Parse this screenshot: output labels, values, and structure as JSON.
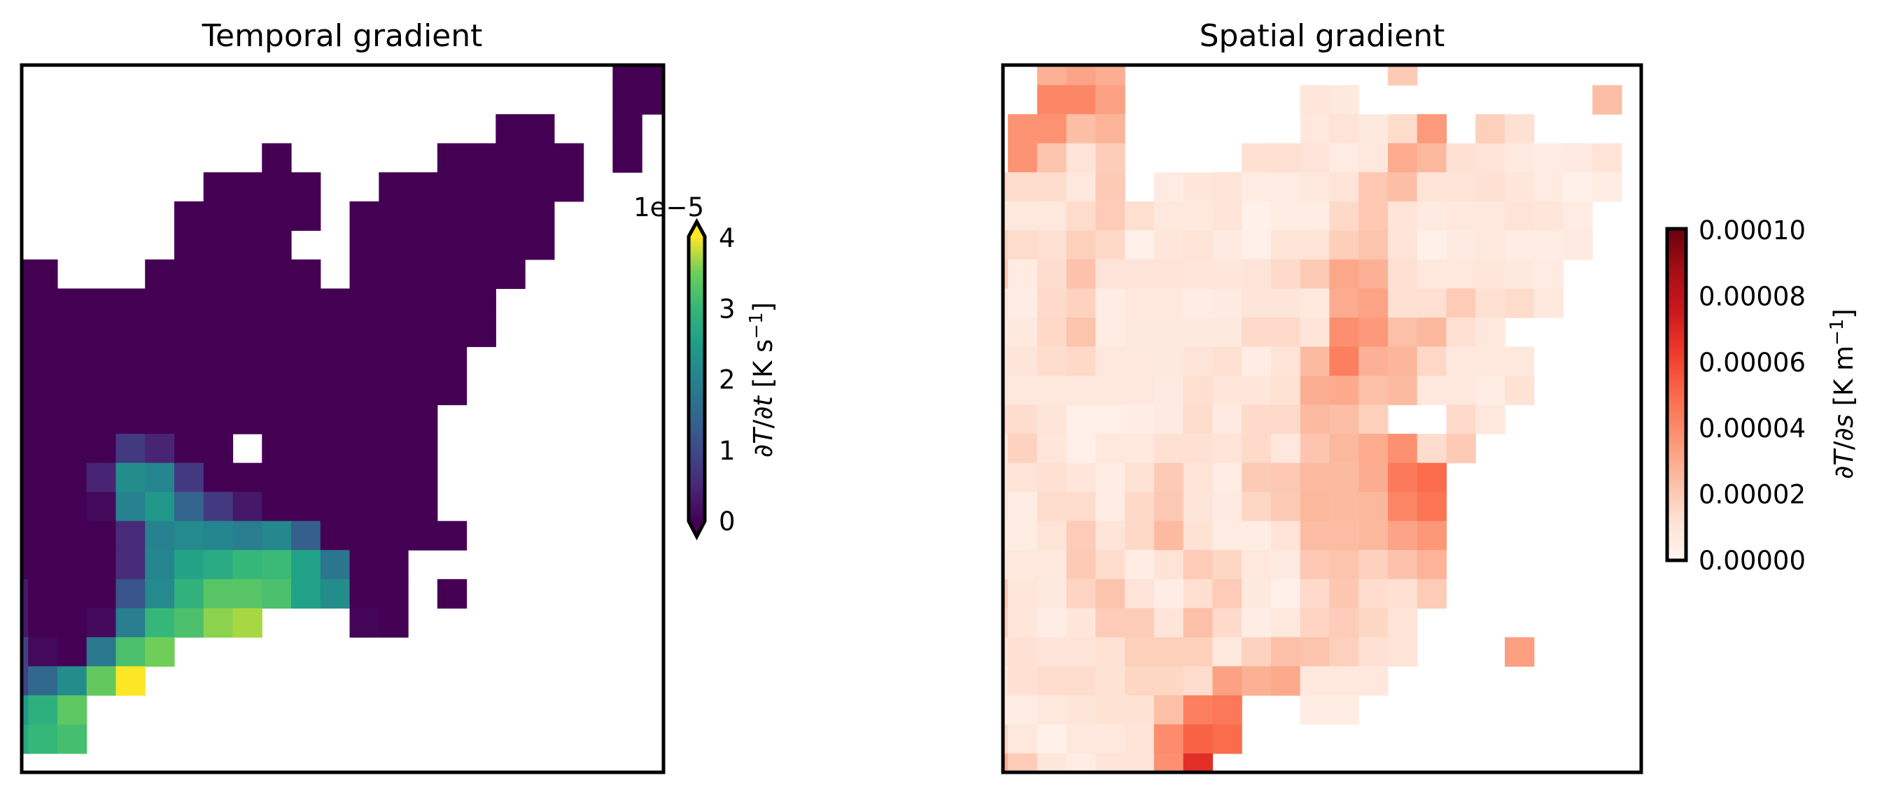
{
  "chart_data": [
    {
      "type": "heatmap",
      "title": "Temporal gradient",
      "colormap": "viridis",
      "value_scale": 1e-05,
      "vmin": 0,
      "vmax": 4,
      "colorbar": {
        "extend": "both",
        "offset_text": "1e−5",
        "ticks": [
          0,
          1,
          2,
          3,
          4
        ],
        "tick_labels": [
          "0",
          "1",
          "2",
          "3",
          "4"
        ],
        "label_parts": [
          "∂",
          "T",
          "/∂",
          "t",
          " [K s",
          "−1",
          "]"
        ]
      },
      "grid_rows": 25,
      "grid_cols": 23,
      "values": [
        [
          null,
          null,
          null,
          null,
          null,
          null,
          null,
          null,
          null,
          null,
          null,
          null,
          null,
          null,
          null,
          null,
          null,
          null,
          null,
          null,
          null,
          0,
          0
        ],
        [
          null,
          null,
          null,
          null,
          null,
          null,
          null,
          null,
          null,
          null,
          null,
          null,
          null,
          null,
          null,
          null,
          null,
          null,
          null,
          null,
          null,
          0,
          0
        ],
        [
          null,
          null,
          null,
          null,
          null,
          null,
          null,
          null,
          null,
          null,
          null,
          null,
          null,
          null,
          null,
          null,
          null,
          0,
          0,
          null,
          null,
          0,
          null
        ],
        [
          null,
          null,
          null,
          null,
          null,
          null,
          null,
          null,
          null,
          0,
          null,
          null,
          null,
          null,
          null,
          0,
          0,
          0,
          0,
          0,
          null,
          0,
          null
        ],
        [
          null,
          null,
          null,
          null,
          null,
          null,
          null,
          0,
          0,
          0,
          0,
          null,
          null,
          0,
          0,
          0,
          0,
          0,
          0,
          0,
          null,
          null,
          null
        ],
        [
          null,
          null,
          null,
          null,
          null,
          null,
          0,
          0,
          0,
          0,
          0,
          null,
          0,
          0,
          0,
          0,
          0,
          0,
          0,
          null,
          null,
          null,
          null
        ],
        [
          null,
          null,
          null,
          null,
          null,
          null,
          0,
          0,
          0,
          0,
          null,
          null,
          0,
          0,
          0,
          0,
          0,
          0,
          0,
          null,
          null,
          null,
          null
        ],
        [
          0,
          0,
          null,
          null,
          null,
          0,
          0,
          0,
          0,
          0,
          0,
          null,
          0,
          0,
          0,
          0,
          0,
          0,
          null,
          null,
          null,
          null,
          null
        ],
        [
          0,
          0,
          0,
          0,
          0,
          0,
          0,
          0,
          0,
          0,
          0,
          0,
          0,
          0,
          0,
          0,
          0,
          null,
          null,
          null,
          null,
          null,
          null
        ],
        [
          0,
          0,
          0,
          0,
          0,
          0,
          0,
          0,
          0,
          0,
          0,
          0,
          0,
          0,
          0,
          0,
          0,
          null,
          null,
          null,
          null,
          null,
          null
        ],
        [
          0,
          0,
          0,
          0,
          0,
          0,
          0,
          0,
          0,
          0,
          0,
          0,
          0,
          0,
          0,
          0,
          null,
          null,
          null,
          null,
          null,
          null,
          null
        ],
        [
          0,
          0,
          0,
          0,
          0,
          0,
          0,
          0,
          0,
          0,
          0,
          0,
          0,
          0,
          0,
          0,
          null,
          null,
          null,
          null,
          null,
          null,
          null
        ],
        [
          0,
          0,
          0,
          0,
          0,
          0,
          0,
          0,
          0,
          0,
          0,
          0,
          0,
          0,
          0,
          null,
          null,
          null,
          null,
          null,
          null,
          null,
          null
        ],
        [
          0,
          0,
          0,
          0,
          0.75,
          0.45,
          0,
          0,
          null,
          0,
          0,
          0,
          0,
          0,
          0,
          null,
          null,
          null,
          null,
          null,
          null,
          null,
          null
        ],
        [
          0,
          0,
          0,
          0.45,
          2.2,
          2.05,
          0.75,
          0,
          0,
          0,
          0,
          0,
          0,
          0,
          0,
          null,
          null,
          null,
          null,
          null,
          null,
          null,
          null
        ],
        [
          0,
          0,
          0,
          0.1,
          2.0,
          2.4,
          1.45,
          0.75,
          0.3,
          0,
          0,
          0,
          0,
          0,
          0,
          null,
          null,
          null,
          null,
          null,
          null,
          null,
          null
        ],
        [
          0,
          0,
          0,
          0,
          0.55,
          2.0,
          2.15,
          2.05,
          1.9,
          2.1,
          1.35,
          0,
          0,
          0,
          0,
          0,
          null,
          null,
          null,
          null,
          null,
          null,
          null
        ],
        [
          0,
          0,
          0,
          0,
          0.55,
          2.05,
          2.6,
          2.75,
          3.0,
          3.05,
          2.55,
          1.75,
          0,
          0,
          null,
          null,
          null,
          null,
          null,
          null,
          null,
          null,
          null
        ],
        [
          0.3,
          0,
          0,
          0,
          1.2,
          2.15,
          2.9,
          3.3,
          3.3,
          3.2,
          2.55,
          2.2,
          0,
          0,
          null,
          0,
          null,
          null,
          null,
          null,
          null,
          null,
          null
        ],
        [
          0.3,
          0,
          0,
          0.1,
          1.9,
          3.0,
          3.2,
          3.6,
          3.7,
          null,
          null,
          null,
          0.05,
          0,
          null,
          null,
          null,
          null,
          null,
          null,
          null,
          null,
          null
        ],
        [
          0.9,
          0.1,
          0,
          1.8,
          3.2,
          3.5,
          null,
          null,
          null,
          null,
          null,
          null,
          null,
          null,
          null,
          null,
          null,
          null,
          null,
          null,
          null,
          null,
          null
        ],
        [
          0.9,
          1.5,
          2.2,
          3.4,
          4.0,
          null,
          null,
          null,
          null,
          null,
          null,
          null,
          null,
          null,
          null,
          null,
          null,
          null,
          null,
          null,
          null,
          null,
          null
        ],
        [
          2.4,
          2.85,
          3.35,
          null,
          null,
          null,
          null,
          null,
          null,
          null,
          null,
          null,
          null,
          null,
          null,
          null,
          null,
          null,
          null,
          null,
          null,
          null,
          null
        ],
        [
          2.7,
          3.0,
          3.15,
          null,
          null,
          null,
          null,
          null,
          null,
          null,
          null,
          null,
          null,
          null,
          null,
          null,
          null,
          null,
          null,
          null,
          null,
          null,
          null
        ],
        [
          null,
          null,
          null,
          null,
          null,
          null,
          null,
          null,
          null,
          null,
          null,
          null,
          null,
          null,
          null,
          null,
          null,
          null,
          null,
          null,
          null,
          null,
          null
        ]
      ]
    },
    {
      "type": "heatmap",
      "title": "Spatial gradient",
      "colormap": "Reds",
      "value_scale": 1e-05,
      "vmin": 0,
      "vmax": 10,
      "colorbar": {
        "extend": "neither",
        "ticks": [
          0,
          2,
          4,
          6,
          8,
          10
        ],
        "tick_labels": [
          "0.00000",
          "0.00002",
          "0.00004",
          "0.00006",
          "0.00008",
          "0.00010"
        ],
        "label_parts": [
          "∂",
          "T",
          "/∂",
          "s",
          " [K m",
          "−1",
          "]"
        ]
      },
      "grid_rows": 25,
      "grid_cols": 23,
      "values": [
        [
          null,
          null,
          2.8,
          3.2,
          2.9,
          null,
          null,
          null,
          null,
          null,
          null,
          null,
          null,
          null,
          2.0,
          null,
          null,
          null,
          null,
          null,
          null,
          null,
          null
        ],
        [
          null,
          null,
          4.1,
          4.1,
          3.3,
          null,
          null,
          null,
          null,
          null,
          null,
          0.9,
          0.7,
          null,
          null,
          null,
          null,
          null,
          null,
          null,
          null,
          2.4,
          null
        ],
        [
          null,
          3.7,
          3.75,
          2.4,
          2.7,
          null,
          null,
          null,
          null,
          null,
          null,
          0.8,
          1.1,
          0.7,
          1.4,
          3.5,
          null,
          1.8,
          1.2,
          null,
          null,
          null,
          null
        ],
        [
          null,
          3.7,
          2.2,
          1.0,
          1.9,
          null,
          null,
          null,
          null,
          1.2,
          1.25,
          1.0,
          0.6,
          0.8,
          3.0,
          2.6,
          1.2,
          1.1,
          0.65,
          0.6,
          0.65,
          1.1,
          null
        ],
        [
          1.4,
          1.4,
          1.4,
          0.8,
          2.0,
          null,
          0.6,
          0.9,
          1.05,
          0.6,
          0.6,
          0.75,
          1.0,
          2.1,
          2.4,
          1.05,
          1.05,
          1.2,
          0.9,
          0.6,
          0.3,
          0.5,
          null
        ],
        [
          0.8,
          0.8,
          0.75,
          1.4,
          1.95,
          1.3,
          0.8,
          0.8,
          1.0,
          0.25,
          0.5,
          0.55,
          1.5,
          2.1,
          1.05,
          0.65,
          0.8,
          0.85,
          1.0,
          0.9,
          0.6,
          null,
          null
        ],
        [
          1.7,
          1.4,
          1.2,
          1.8,
          1.5,
          0.3,
          0.9,
          1.05,
          0.65,
          0.35,
          1.05,
          1.1,
          1.85,
          2.2,
          1.1,
          0.3,
          0.65,
          0.8,
          0.55,
          0.55,
          0.65,
          null,
          null
        ],
        [
          2.0,
          0.6,
          1.35,
          2.25,
          1.0,
          1.0,
          1.0,
          0.9,
          0.9,
          1.0,
          1.45,
          2.0,
          3.1,
          2.8,
          1.25,
          0.8,
          0.85,
          0.9,
          0.7,
          0.6,
          null,
          null,
          null
        ],
        [
          0.8,
          0.5,
          1.45,
          1.7,
          0.55,
          0.75,
          0.75,
          0.5,
          0.65,
          0.95,
          0.95,
          0.85,
          3.0,
          3.25,
          1.25,
          1.25,
          1.95,
          1.2,
          1.4,
          0.8,
          null,
          null,
          null
        ],
        [
          0.7,
          0.7,
          1.5,
          2.2,
          0.55,
          0.7,
          0.7,
          0.7,
          0.7,
          1.45,
          1.45,
          0.95,
          3.85,
          3.55,
          2.35,
          2.6,
          1.25,
          0.75,
          null,
          null,
          null,
          null,
          null
        ],
        [
          0.85,
          0.95,
          1.4,
          1.5,
          0.85,
          0.75,
          0.7,
          1.0,
          1.25,
          0.55,
          1.05,
          2.5,
          4.35,
          2.8,
          2.65,
          1.55,
          0.85,
          0.85,
          0.8,
          null,
          null,
          null,
          null
        ],
        [
          0.85,
          0.85,
          0.85,
          0.85,
          0.85,
          0.85,
          0.65,
          1.3,
          0.9,
          0.9,
          1.15,
          2.9,
          3.05,
          2.35,
          2.5,
          0.8,
          0.8,
          0.5,
          1.15,
          null,
          null,
          null,
          null
        ],
        [
          1.35,
          1.35,
          0.95,
          0.35,
          0.35,
          0.45,
          0.65,
          1.4,
          0.65,
          1.45,
          1.45,
          2.5,
          2.4,
          1.8,
          null,
          null,
          1.45,
          0.8,
          null,
          null,
          null,
          null,
          null
        ],
        [
          0.85,
          1.7,
          0.9,
          0.35,
          0.85,
          0.85,
          1.2,
          1.2,
          1.05,
          1.45,
          0.8,
          2.15,
          2.6,
          3.0,
          3.8,
          1.35,
          2.0,
          null,
          null,
          null,
          null,
          null,
          null
        ],
        [
          0.85,
          1.05,
          1.2,
          0.9,
          0.55,
          1.15,
          2.0,
          1.1,
          0.6,
          2.0,
          2.05,
          2.5,
          2.5,
          2.95,
          4.5,
          4.95,
          null,
          null,
          null,
          null,
          null,
          null,
          null
        ],
        [
          0.75,
          0.55,
          1.4,
          1.4,
          0.5,
          1.5,
          2.05,
          0.95,
          0.65,
          1.6,
          2.0,
          2.6,
          2.5,
          2.6,
          4.15,
          4.65,
          null,
          null,
          null,
          null,
          null,
          null,
          null
        ],
        [
          0.45,
          0.5,
          1.05,
          1.95,
          1.0,
          1.5,
          2.5,
          1.15,
          0.6,
          0.5,
          1.1,
          2.45,
          2.45,
          2.6,
          3.2,
          3.6,
          null,
          null,
          null,
          null,
          null,
          null,
          null
        ],
        [
          0.8,
          0.8,
          0.8,
          2.0,
          1.4,
          0.55,
          1.1,
          1.95,
          1.6,
          0.8,
          0.65,
          2.05,
          2.2,
          1.75,
          2.25,
          2.75,
          null,
          null,
          null,
          null,
          null,
          null,
          null
        ],
        [
          2.0,
          0.9,
          0.7,
          1.65,
          2.2,
          1.0,
          0.45,
          1.3,
          1.95,
          0.7,
          0.35,
          1.45,
          2.1,
          1.35,
          1.2,
          1.95,
          null,
          null,
          null,
          null,
          null,
          null,
          null
        ],
        [
          1.75,
          0.9,
          0.45,
          0.9,
          1.95,
          1.9,
          0.95,
          2.35,
          1.45,
          0.45,
          0.8,
          1.65,
          1.95,
          1.6,
          1.05,
          null,
          null,
          null,
          null,
          null,
          null,
          null,
          null
        ],
        [
          1.15,
          1.2,
          1.0,
          1.0,
          1.15,
          1.8,
          1.8,
          1.8,
          0.85,
          1.7,
          2.35,
          2.2,
          1.8,
          1.2,
          1.05,
          null,
          null,
          null,
          3.35,
          null,
          null,
          null,
          null
        ],
        [
          0.8,
          1.2,
          1.35,
          1.35,
          1.15,
          1.6,
          1.6,
          1.35,
          3.3,
          2.85,
          3.05,
          0.85,
          0.8,
          0.8,
          null,
          null,
          null,
          null,
          null,
          null,
          null,
          null,
          null
        ],
        [
          0.55,
          0.55,
          0.8,
          0.95,
          1.15,
          1.15,
          2.35,
          4.3,
          4.55,
          null,
          null,
          0.5,
          0.5,
          null,
          null,
          null,
          null,
          null,
          null,
          null,
          null,
          null,
          null
        ],
        [
          1.55,
          0.75,
          0.3,
          0.8,
          0.8,
          1.05,
          3.95,
          5.2,
          4.95,
          null,
          null,
          null,
          null,
          null,
          null,
          null,
          null,
          null,
          null,
          null,
          null,
          null,
          null
        ],
        [
          2.9,
          1.95,
          0.9,
          0.6,
          1.0,
          1.0,
          3.8,
          6.7,
          null,
          null,
          null,
          null,
          null,
          null,
          null,
          null,
          null,
          null,
          null,
          null,
          null,
          null,
          null
        ]
      ]
    }
  ]
}
